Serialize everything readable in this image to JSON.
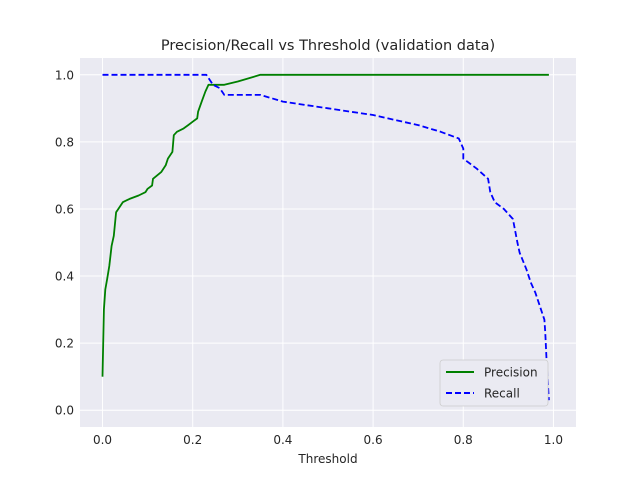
{
  "chart_data": {
    "type": "line",
    "title": "Precision/Recall vs Threshold (validation data)",
    "xlabel": "Threshold",
    "ylabel": "",
    "xlim": [
      -0.05,
      1.05
    ],
    "ylim": [
      -0.05,
      1.05
    ],
    "x_ticks": [
      "0.0",
      "0.2",
      "0.4",
      "0.6",
      "0.8",
      "1.0"
    ],
    "y_ticks": [
      "0.0",
      "0.2",
      "0.4",
      "0.6",
      "0.8",
      "1.0"
    ],
    "grid": true,
    "legend_position": "lower-right",
    "series": [
      {
        "name": "Precision",
        "color": "#008000",
        "dash": "solid",
        "x": [
          0.0,
          0.003,
          0.006,
          0.01,
          0.015,
          0.02,
          0.025,
          0.03,
          0.035,
          0.045,
          0.06,
          0.08,
          0.095,
          0.1,
          0.11,
          0.112,
          0.13,
          0.14,
          0.145,
          0.155,
          0.158,
          0.165,
          0.18,
          0.19,
          0.2,
          0.21,
          0.212,
          0.22,
          0.228,
          0.235,
          0.255,
          0.27,
          0.3,
          0.35,
          0.45,
          0.55,
          0.65,
          0.75,
          0.85,
          0.95,
          0.99
        ],
        "y": [
          0.1,
          0.3,
          0.36,
          0.39,
          0.43,
          0.49,
          0.52,
          0.59,
          0.6,
          0.62,
          0.63,
          0.64,
          0.65,
          0.66,
          0.67,
          0.69,
          0.71,
          0.73,
          0.75,
          0.77,
          0.82,
          0.83,
          0.84,
          0.85,
          0.86,
          0.87,
          0.89,
          0.92,
          0.95,
          0.97,
          0.97,
          0.97,
          0.98,
          1.0,
          1.0,
          1.0,
          1.0,
          1.0,
          1.0,
          1.0,
          1.0
        ]
      },
      {
        "name": "Recall",
        "color": "#0000ff",
        "dash": "dashed",
        "x": [
          0.0,
          0.1,
          0.2,
          0.23,
          0.24,
          0.245,
          0.26,
          0.27,
          0.35,
          0.4,
          0.45,
          0.5,
          0.55,
          0.6,
          0.65,
          0.7,
          0.75,
          0.79,
          0.8,
          0.8,
          0.83,
          0.855,
          0.86,
          0.87,
          0.89,
          0.91,
          0.92,
          0.925,
          0.94,
          0.95,
          0.96,
          0.97,
          0.98,
          0.982,
          0.985,
          0.99
        ],
        "y": [
          1.0,
          1.0,
          1.0,
          1.0,
          0.98,
          0.97,
          0.96,
          0.94,
          0.94,
          0.92,
          0.91,
          0.9,
          0.89,
          0.88,
          0.865,
          0.85,
          0.83,
          0.81,
          0.78,
          0.75,
          0.72,
          0.69,
          0.65,
          0.62,
          0.6,
          0.57,
          0.5,
          0.47,
          0.42,
          0.38,
          0.35,
          0.31,
          0.27,
          0.23,
          0.14,
          0.03
        ]
      }
    ]
  }
}
